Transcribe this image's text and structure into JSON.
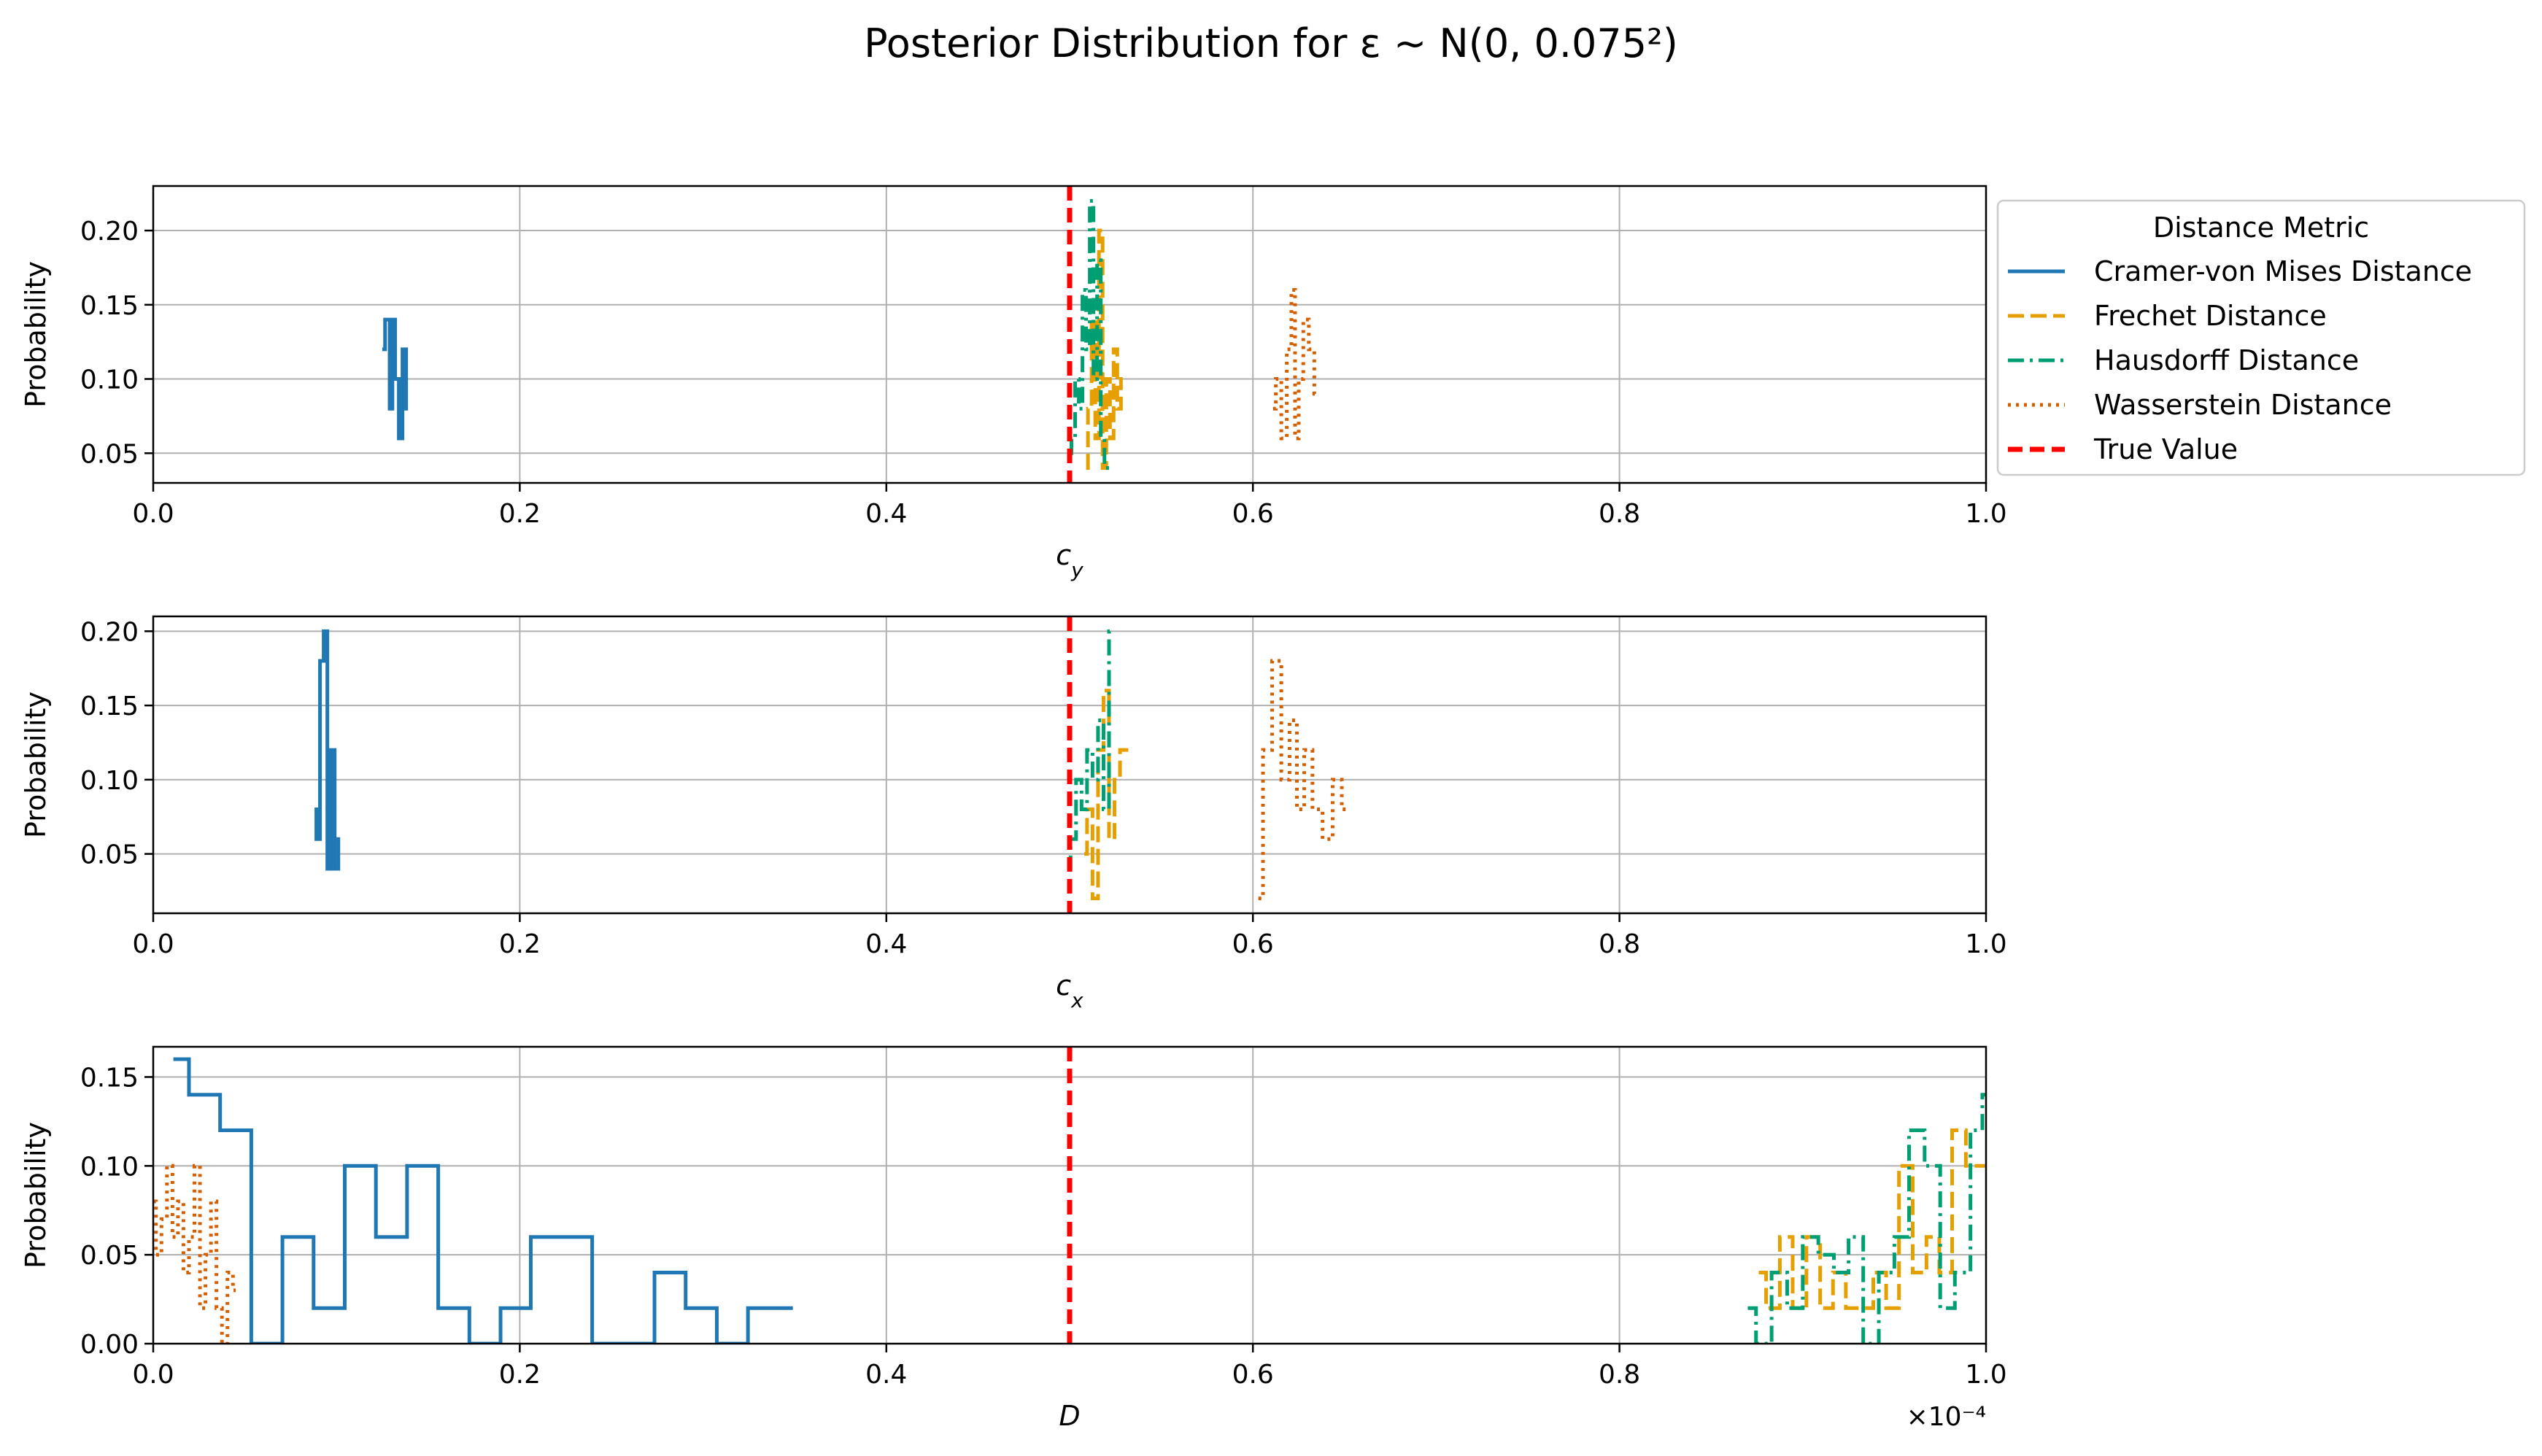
{
  "figure": {
    "title": "Posterior Distribution for ε ~ N(0, 0.075²)",
    "legend": {
      "title": "Distance Metric",
      "placement": "right of top panel",
      "entries": [
        {
          "label": "Cramer-von Mises Distance",
          "color": "#1f77b4",
          "style": "solid"
        },
        {
          "label": "Frechet Distance",
          "color": "#e69f00",
          "style": "dashed"
        },
        {
          "label": "Hausdorff Distance",
          "color": "#009e73",
          "style": "dashdot"
        },
        {
          "label": "Wasserstein Distance",
          "color": "#d55e00",
          "style": "dotted"
        },
        {
          "label": "True Value",
          "color": "#ff0000",
          "style": "dashed"
        }
      ]
    }
  },
  "chart_data": [
    {
      "type": "line",
      "drawstyle": "steps",
      "xlabel": "c_y",
      "ylabel": "Probability",
      "xlim": [
        0.0,
        1.0
      ],
      "ylim": [
        0.03,
        0.23
      ],
      "xticks": [
        0.0,
        0.2,
        0.4,
        0.6,
        0.8,
        1.0
      ],
      "yticks": [
        0.05,
        0.1,
        0.15,
        0.2
      ],
      "grid": true,
      "true_value": 0.5,
      "series": [
        {
          "name": "Cramer-von Mises Distance",
          "x": [
            0.125,
            0.128,
            0.13,
            0.131,
            0.133,
            0.135,
            0.137,
            0.139
          ],
          "y": [
            0.12,
            0.14,
            0.08,
            0.14,
            0.1,
            0.06,
            0.12,
            0.08
          ]
        },
        {
          "name": "Frechet Distance",
          "x": [
            0.509,
            0.511,
            0.513,
            0.515,
            0.517,
            0.519,
            0.521,
            0.523,
            0.525,
            0.527,
            0.529
          ],
          "y": [
            0.04,
            0.08,
            0.14,
            0.06,
            0.2,
            0.04,
            0.1,
            0.06,
            0.12,
            0.08,
            0.1
          ]
        },
        {
          "name": "Hausdorff Distance",
          "x": [
            0.5,
            0.502,
            0.504,
            0.506,
            0.508,
            0.51,
            0.512,
            0.514,
            0.516,
            0.518,
            0.52,
            0.522
          ],
          "y": [
            0.05,
            0.06,
            0.1,
            0.08,
            0.16,
            0.12,
            0.22,
            0.1,
            0.18,
            0.06,
            0.04,
            0.04
          ]
        },
        {
          "name": "Wasserstein Distance",
          "x": [
            0.611,
            0.614,
            0.617,
            0.62,
            0.622,
            0.624,
            0.626,
            0.629,
            0.632,
            0.635
          ],
          "y": [
            0.08,
            0.1,
            0.06,
            0.12,
            0.16,
            0.06,
            0.1,
            0.14,
            0.12,
            0.09
          ]
        }
      ]
    },
    {
      "type": "line",
      "drawstyle": "steps",
      "xlabel": "c_x",
      "ylabel": "Probability",
      "xlim": [
        0.0,
        1.0
      ],
      "ylim": [
        0.01,
        0.21
      ],
      "xticks": [
        0.0,
        0.2,
        0.4,
        0.6,
        0.8,
        1.0
      ],
      "yticks": [
        0.05,
        0.1,
        0.15,
        0.2
      ],
      "grid": true,
      "true_value": 0.5,
      "series": [
        {
          "name": "Cramer-von Mises Distance",
          "x": [
            0.088,
            0.09,
            0.092,
            0.094,
            0.096,
            0.098,
            0.1,
            0.102
          ],
          "y": [
            0.08,
            0.06,
            0.18,
            0.2,
            0.04,
            0.12,
            0.04,
            0.06
          ]
        },
        {
          "name": "Frechet Distance",
          "x": [
            0.508,
            0.511,
            0.514,
            0.517,
            0.52,
            0.523,
            0.526,
            0.529,
            0.532
          ],
          "y": [
            0.05,
            0.08,
            0.02,
            0.12,
            0.16,
            0.06,
            0.1,
            0.12,
            0.12
          ]
        },
        {
          "name": "Hausdorff Distance",
          "x": [
            0.499,
            0.502,
            0.505,
            0.508,
            0.511,
            0.514,
            0.517,
            0.52,
            0.523
          ],
          "y": [
            0.04,
            0.06,
            0.1,
            0.08,
            0.12,
            0.1,
            0.14,
            0.08,
            0.2
          ]
        },
        {
          "name": "Wasserstein Distance",
          "x": [
            0.603,
            0.608,
            0.613,
            0.618,
            0.622,
            0.626,
            0.63,
            0.635,
            0.641,
            0.646,
            0.651
          ],
          "y": [
            0.02,
            0.12,
            0.18,
            0.1,
            0.14,
            0.08,
            0.12,
            0.08,
            0.06,
            0.1,
            0.08
          ]
        }
      ]
    },
    {
      "type": "line",
      "drawstyle": "steps",
      "xlabel": "D",
      "ylabel": "Probability",
      "xlim": [
        0.0,
        1.0
      ],
      "ylim": [
        0.0,
        0.167
      ],
      "xticks": [
        0.0,
        0.2,
        0.4,
        0.6,
        0.8,
        1.0
      ],
      "yticks": [
        0.0,
        0.05,
        0.1,
        0.15
      ],
      "x_scale_label": "×10⁻⁴",
      "grid": true,
      "true_value": 0.5,
      "series": [
        {
          "name": "Cramer-von Mises Distance",
          "x": [
            0.011,
            0.028,
            0.045,
            0.062,
            0.079,
            0.096,
            0.113,
            0.13,
            0.147,
            0.164,
            0.181,
            0.198,
            0.214,
            0.231,
            0.248,
            0.265,
            0.282,
            0.299,
            0.316,
            0.333,
            0.349
          ],
          "y": [
            0.16,
            0.14,
            0.12,
            0.0,
            0.06,
            0.02,
            0.1,
            0.06,
            0.1,
            0.02,
            0.0,
            0.02,
            0.06,
            0.06,
            0.0,
            0.0,
            0.04,
            0.02,
            0.0,
            0.02,
            0.02
          ]
        },
        {
          "name": "Frechet Distance",
          "x": [
            0.876,
            0.884,
            0.891,
            0.898,
            0.906,
            0.913,
            0.92,
            0.927,
            0.935,
            0.942,
            0.949,
            0.956,
            0.964,
            0.971,
            0.978,
            0.985,
            0.993,
            1.0
          ],
          "y": [
            0.04,
            0.02,
            0.06,
            0.02,
            0.06,
            0.02,
            0.04,
            0.02,
            0.02,
            0.04,
            0.02,
            0.1,
            0.04,
            0.06,
            0.04,
            0.12,
            0.1,
            0.1
          ]
        },
        {
          "name": "Hausdorff Distance",
          "x": [
            0.87,
            0.879,
            0.887,
            0.896,
            0.904,
            0.913,
            0.921,
            0.929,
            0.937,
            0.946,
            0.954,
            0.962,
            0.971,
            0.979,
            0.987,
            0.996,
            1.0
          ],
          "y": [
            0.02,
            0.0,
            0.04,
            0.02,
            0.06,
            0.05,
            0.04,
            0.06,
            0.0,
            0.04,
            0.06,
            0.12,
            0.1,
            0.02,
            0.04,
            0.12,
            0.14
          ]
        },
        {
          "name": "Wasserstein Distance",
          "x": [
            0.0,
            0.003,
            0.006,
            0.009,
            0.012,
            0.015,
            0.018,
            0.021,
            0.024,
            0.027,
            0.03,
            0.033,
            0.036,
            0.039,
            0.042,
            0.045
          ],
          "y": [
            0.08,
            0.05,
            0.07,
            0.1,
            0.06,
            0.08,
            0.04,
            0.06,
            0.1,
            0.02,
            0.05,
            0.08,
            0.02,
            0.0,
            0.04,
            0.03
          ]
        }
      ]
    }
  ]
}
